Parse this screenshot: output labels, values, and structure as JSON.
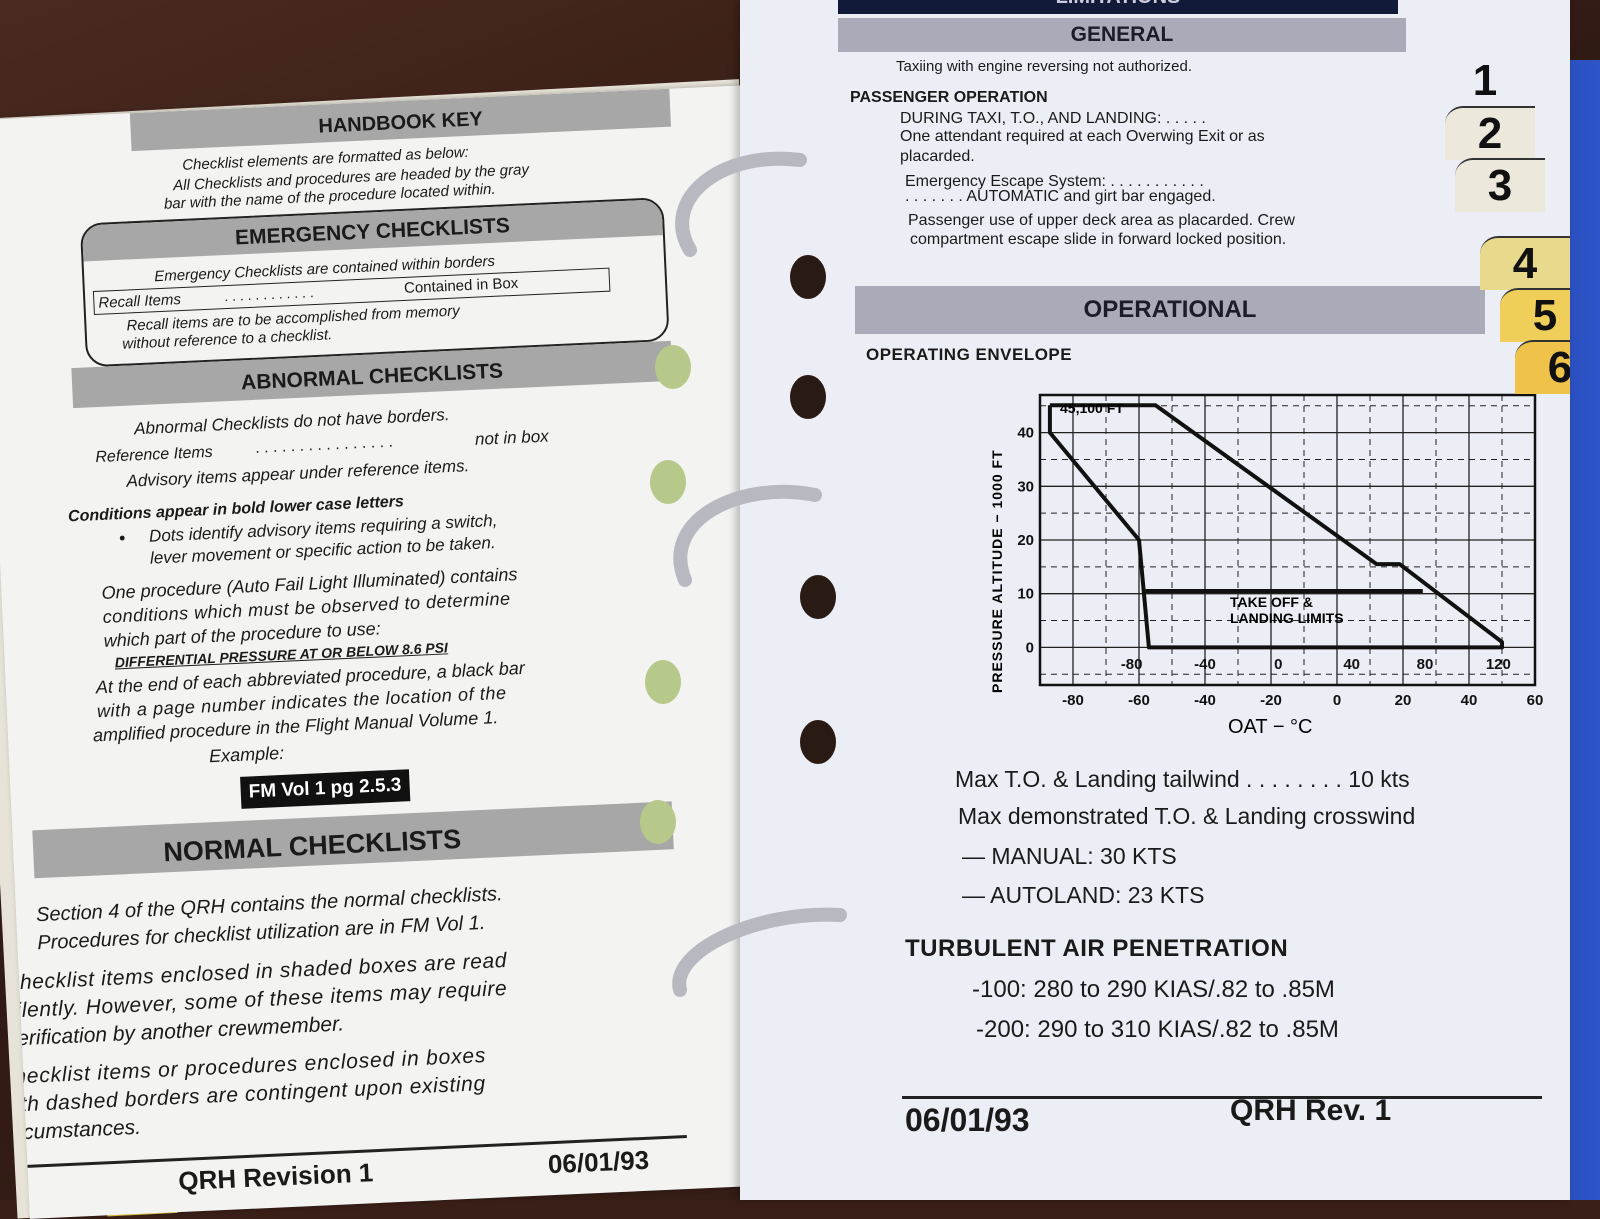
{
  "left_page": {
    "handbook_key": {
      "title": "HANDBOOK KEY",
      "lines": [
        "Checklist elements are formatted as below:",
        "All Checklists and procedures are headed by the gray",
        "bar with the name of the procedure located within."
      ]
    },
    "emergency": {
      "title": "EMERGENCY CHECKLISTS",
      "line1": "Emergency Checklists are contained within borders",
      "recall_label": "Recall Items",
      "recall_dots": ". . . . . . . . . . . .",
      "recall_value": "Contained in Box",
      "lines": [
        "Recall items are to be accomplished from memory",
        "without reference to a checklist."
      ]
    },
    "abnormal": {
      "title": "ABNORMAL CHECKLISTS",
      "line1": "Abnormal Checklists do not have borders.",
      "ref_label": "Reference Items",
      "ref_dots": ". . . . . . . . . . . . . . . .",
      "ref_value": "not in box",
      "line3": "Advisory items appear under reference items.",
      "conditions": "Conditions appear in bold lower case letters",
      "bullet": [
        "Dots identify advisory items requiring a switch,",
        "lever movement or specific action to be taken."
      ],
      "procedure": [
        "One procedure (Auto Fail Light Illuminated) contains",
        "conditions which must be observed to determine",
        "which part of the procedure to use:"
      ],
      "diff_pressure": "DIFFERENTIAL PRESSURE AT OR BELOW 8.6 PSI",
      "end_text": [
        "At the end of each abbreviated procedure, a black bar",
        "with a page number indicates the location of the",
        "amplified procedure in the Flight Manual Volume 1."
      ],
      "example_label": "Example:",
      "example_bar": "FM Vol 1 pg 2.5.3"
    },
    "normal": {
      "title": "NORMAL CHECKLISTS",
      "para1": [
        "Section 4 of the QRH contains the normal checklists.",
        "Procedures for checklist utilization are in FM Vol 1."
      ],
      "para2": [
        "Checklist items enclosed in shaded boxes are read",
        "silently. However, some of these items may require",
        "verification by another crewmember."
      ],
      "para3": [
        "Checklist items or procedures enclosed in boxes",
        "with dashed borders are contingent upon existing",
        "circumstances."
      ]
    },
    "footer": {
      "left": "QRH Revision 1",
      "right": "06/01/93"
    }
  },
  "right_page": {
    "section_bar": "LIMITATIONS",
    "general": {
      "title": "GENERAL",
      "taxi": "Taxiing with engine reversing not authorized.",
      "passenger_heading": "PASSENGER OPERATION",
      "lines": [
        "DURING TAXI, T.O., AND LANDING:   . . . . .",
        "One attendant required at each Overwing Exit or as",
        "placarded.",
        "Emergency Escape System:  . . . . . . . . . . .",
        ". . . . . . .   AUTOMATIC and girt bar engaged.",
        "Passenger use of upper deck area as placarded. Crew",
        "compartment escape slide in forward locked position."
      ]
    },
    "operational": {
      "title": "OPERATIONAL",
      "envelope_heading": "OPERATING ENVELOPE",
      "tailwind": "Max T.O. & Landing tailwind . . . . . . . . 10 kts",
      "crosswind": "Max demonstrated T.O. & Landing crosswind",
      "manual": "—  MANUAL:     30 KTS",
      "autoland": "—  AUTOLAND:  23 KTS",
      "turbulent_heading": "TURBULENT AIR PENETRATION",
      "turb_100": "-100: 280 to 290 KIAS/.82 to .85M",
      "turb_200": "-200: 290 to 310 KIAS/.82 to .85M"
    },
    "footer": {
      "date": "06/01/93",
      "rev": "QRH Rev. 1"
    },
    "tabs": [
      "1",
      "2",
      "3",
      "4",
      "5",
      "6"
    ]
  },
  "chart_data": {
    "type": "line",
    "title": "",
    "xlabel": "OAT − °C",
    "ylabel": "PRESSURE  ALTITUDE  −  1000  FT",
    "xlim": [
      -90,
      60
    ],
    "ylim": [
      -7,
      47
    ],
    "x_ticks": [
      "-80",
      "-60",
      "-40",
      "-20",
      "0",
      "20",
      "40",
      "60"
    ],
    "x_tick_values": [
      -80,
      -60,
      -40,
      -20,
      0,
      20,
      40,
      60
    ],
    "secondary_x_ticks_F": [
      "-80",
      "-40",
      "0",
      "40",
      "80",
      "120"
    ],
    "secondary_x_tick_values_F": [
      -80,
      -40,
      0,
      40,
      80,
      120
    ],
    "y_ticks": [
      "0",
      "10",
      "20",
      "30",
      "40"
    ],
    "y_tick_values": [
      0,
      10,
      20,
      30,
      40
    ],
    "grid": true,
    "series": [
      {
        "points": [
          [
            -87,
            45.1
          ],
          [
            -55,
            45.1
          ],
          [
            12,
            15.5
          ],
          [
            19,
            15.5
          ],
          [
            50,
            1
          ],
          [
            50,
            0
          ],
          [
            -57,
            0
          ],
          [
            -60,
            20
          ],
          [
            -87,
            40
          ],
          [
            -87,
            45.1
          ]
        ]
      },
      {
        "points": [
          [
            -58,
            10.5
          ],
          [
            26,
            10.5
          ]
        ]
      }
    ],
    "annotations": [
      "45,100 FT",
      "TAKE OFF  &",
      "LANDING LIMITS"
    ]
  }
}
